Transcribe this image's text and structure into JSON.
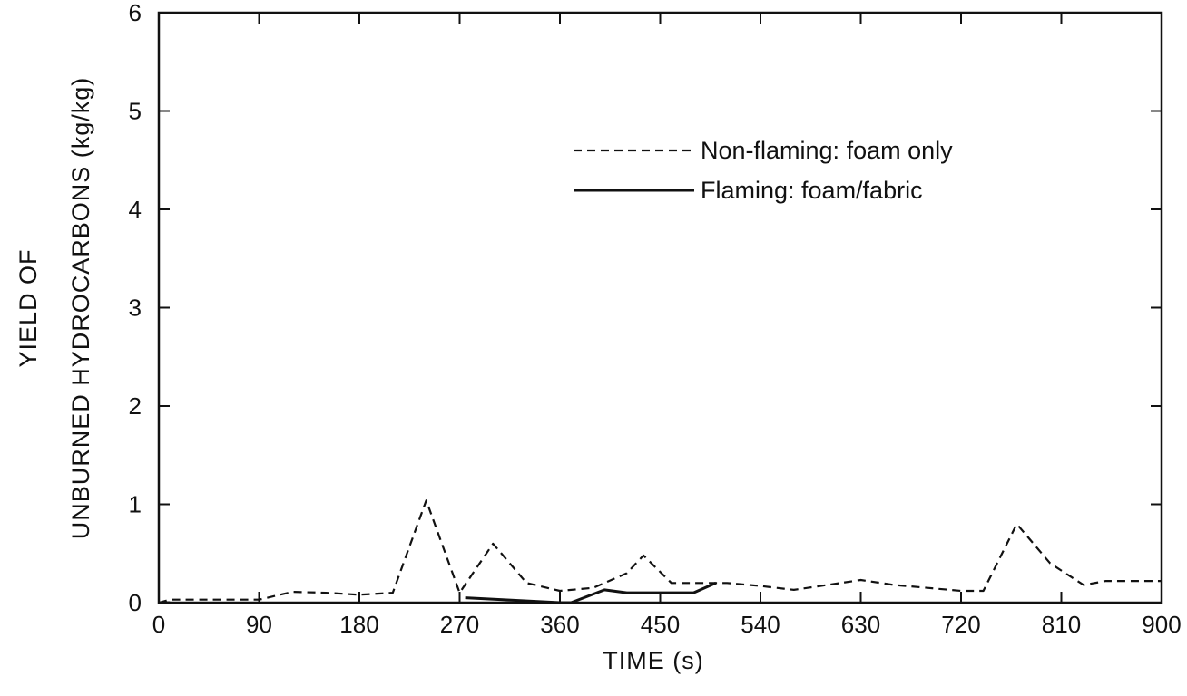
{
  "chart_data": {
    "type": "line",
    "title": "",
    "xlabel": "TIME (s)",
    "ylabel_line1": "YIELD OF",
    "ylabel_line2": "UNBURNED HYDROCARBONS (kg/kg)",
    "xlim": [
      0,
      900
    ],
    "ylim": [
      0,
      6
    ],
    "xticks": [
      0,
      90,
      180,
      270,
      360,
      450,
      540,
      630,
      720,
      810,
      900
    ],
    "yticks": [
      0,
      1,
      2,
      3,
      4,
      5,
      6
    ],
    "grid": false,
    "legend_position": "upper-right",
    "series": [
      {
        "name": "Non-flaming: foam only",
        "style": "dashed",
        "color": "#111111",
        "x": [
          0,
          10,
          90,
          120,
          150,
          180,
          210,
          240,
          270,
          300,
          330,
          360,
          390,
          420,
          435,
          460,
          480,
          510,
          540,
          570,
          600,
          630,
          660,
          690,
          720,
          740,
          770,
          800,
          830,
          850,
          900
        ],
        "y": [
          0.0,
          0.03,
          0.03,
          0.11,
          0.1,
          0.08,
          0.1,
          1.04,
          0.1,
          0.6,
          0.2,
          0.12,
          0.15,
          0.3,
          0.48,
          0.2,
          0.2,
          0.2,
          0.17,
          0.13,
          0.18,
          0.23,
          0.18,
          0.15,
          0.12,
          0.12,
          0.8,
          0.4,
          0.18,
          0.22,
          0.22
        ]
      },
      {
        "name": "Flaming: foam/fabric",
        "style": "solid",
        "color": "#111111",
        "x": [
          0,
          10,
          265,
          275,
          360,
          370,
          400,
          420,
          480,
          500
        ],
        "y": [
          0.0,
          0.0,
          null,
          0.05,
          0.0,
          0.0,
          0.13,
          0.1,
          0.1,
          0.2
        ]
      }
    ]
  }
}
